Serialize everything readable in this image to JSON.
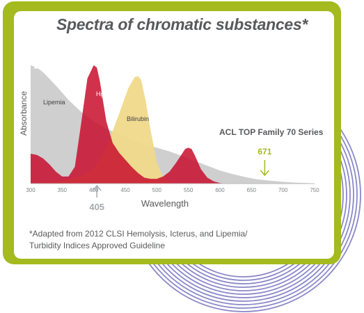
{
  "colors": {
    "frame": "#a4ba1e",
    "ring": "#8a88c8",
    "lipemia_fill": "#cfcfd0",
    "hgb_fill": "#c8102e",
    "bilirubin_fill": "#f0d98a",
    "text": "#58595b",
    "marker_671": "#a4ba1e",
    "marker_405": "#a7a9ac"
  },
  "footnote": {
    "line1": "*Adapted from 2012 CLSI Hemolysis, Icterus, and Lipemia/",
    "line2": "Turbidity Indices Approved Guideline"
  },
  "chart_data": {
    "type": "area",
    "title": "Spectra of chromatic substances*",
    "xlabel": "Wavelength",
    "ylabel": "Absorbance",
    "xlim": [
      300,
      750
    ],
    "x_ticks": [
      300,
      350,
      400,
      450,
      500,
      550,
      600,
      650,
      700,
      750
    ],
    "ylim": [
      0,
      1
    ],
    "grid": false,
    "series": [
      {
        "name": "Lipemia",
        "color": "#cfcfd0",
        "x": [
          300,
          310,
          320,
          340,
          360,
          380,
          400,
          420,
          440,
          460,
          480,
          500,
          520,
          540,
          560,
          580,
          600,
          620,
          640,
          660,
          680,
          700,
          720,
          740,
          750
        ],
        "y": [
          0.99,
          0.97,
          0.93,
          0.82,
          0.7,
          0.6,
          0.52,
          0.46,
          0.41,
          0.37,
          0.33,
          0.3,
          0.27,
          0.23,
          0.19,
          0.15,
          0.11,
          0.08,
          0.055,
          0.035,
          0.025,
          0.015,
          0.008,
          0.004,
          0.002
        ]
      },
      {
        "name": "Bilirubin",
        "color": "#f0d98a",
        "x": [
          300,
          350,
          380,
          400,
          420,
          440,
          455,
          465,
          470,
          475,
          482,
          490,
          500,
          510,
          520,
          530,
          540,
          550,
          560,
          570
        ],
        "y": [
          0,
          0.02,
          0.06,
          0.13,
          0.3,
          0.58,
          0.8,
          0.89,
          0.9,
          0.87,
          0.7,
          0.45,
          0.18,
          0.05,
          0.01,
          0,
          0,
          0,
          0,
          0
        ]
      },
      {
        "name": "Hgb",
        "color": "#c8102e",
        "x": [
          300,
          310,
          320,
          330,
          340,
          350,
          360,
          370,
          380,
          390,
          400,
          405,
          410,
          415,
          420,
          430,
          440,
          450,
          460,
          470,
          480,
          490,
          500,
          510,
          520,
          530,
          540,
          545,
          550,
          555,
          560,
          570,
          580,
          590,
          600,
          610
        ],
        "y": [
          0.25,
          0.24,
          0.21,
          0.16,
          0.1,
          0.06,
          0.06,
          0.14,
          0.5,
          0.88,
          0.99,
          0.97,
          0.85,
          0.68,
          0.52,
          0.34,
          0.26,
          0.2,
          0.14,
          0.09,
          0.05,
          0.04,
          0.04,
          0.06,
          0.1,
          0.17,
          0.25,
          0.29,
          0.3,
          0.29,
          0.24,
          0.12,
          0.05,
          0.02,
          0.005,
          0
        ]
      }
    ],
    "series_labels": [
      "Lipemia",
      "Hgb",
      "Bilirubin"
    ],
    "annotations": {
      "instrument": "ACL TOP Family 70 Series",
      "marker_671": {
        "label": "671",
        "x": 671
      },
      "marker_405": {
        "label": "405",
        "x": 405
      }
    }
  }
}
